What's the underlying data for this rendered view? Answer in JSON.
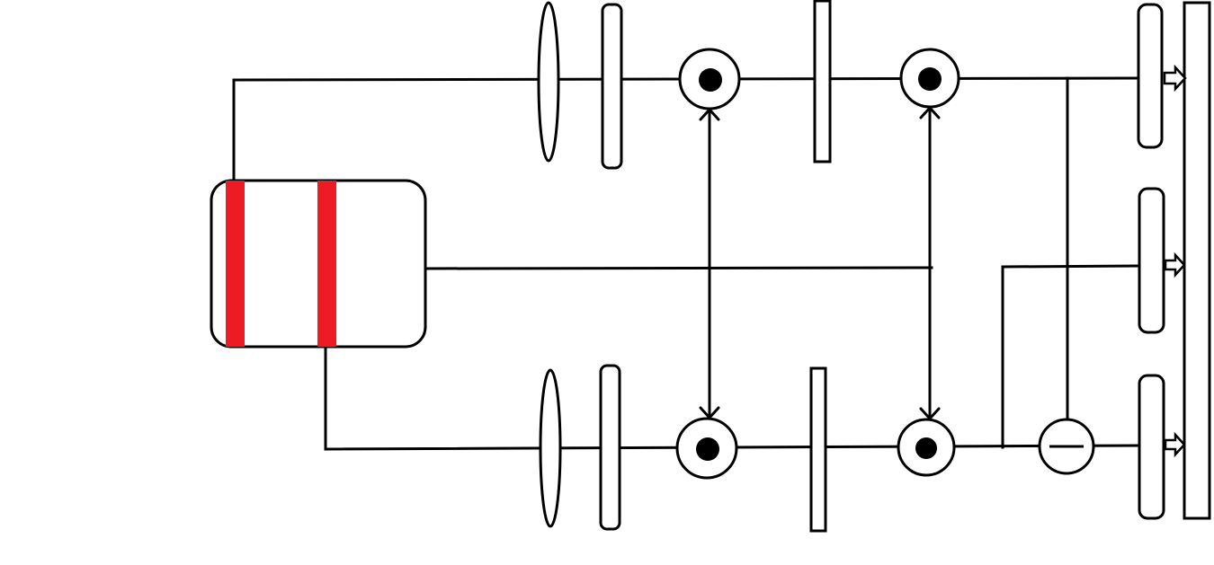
{
  "diagram": {
    "background": "#ffffff",
    "stroke_color": "#000000",
    "accent_color": "#ed1c24",
    "components": [
      {
        "name": "source-block",
        "icon": "rounded-box-with-two-red-bars"
      },
      {
        "name": "upper-path",
        "elements": [
          "lens",
          "filter-plate",
          "dot-node",
          "tall-plate",
          "dot-node",
          "output-plate"
        ]
      },
      {
        "name": "lower-path",
        "elements": [
          "lens",
          "filter-plate",
          "dot-node",
          "tall-plate",
          "dot-node",
          "minus-node",
          "output-plate"
        ]
      },
      {
        "name": "output-bar",
        "outputs": 3
      }
    ]
  }
}
